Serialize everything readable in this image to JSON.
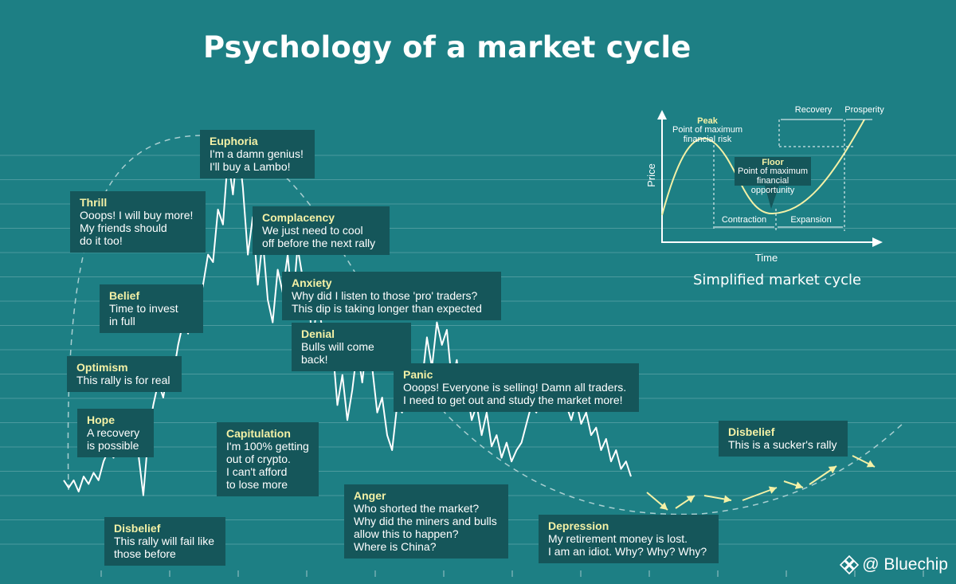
{
  "title": "Psychology of a market cycle",
  "colors": {
    "background": "#1d7f84",
    "box": "#15565a",
    "heading": "#f4f1a6",
    "line": "#ffffff",
    "arrows": "#f4f1a6"
  },
  "stages": [
    {
      "id": "disbelief-1",
      "heading": "Disbelief",
      "text": "This rally will fail like\nthose before"
    },
    {
      "id": "hope",
      "heading": "Hope",
      "text": "A recovery\nis possible"
    },
    {
      "id": "optimism",
      "heading": "Optimism",
      "text": "This rally is for real"
    },
    {
      "id": "belief",
      "heading": "Belief",
      "text": "Time to invest\nin full"
    },
    {
      "id": "thrill",
      "heading": "Thrill",
      "text": "Ooops! I will buy more!\nMy friends should\ndo it too!"
    },
    {
      "id": "euphoria",
      "heading": "Euphoria",
      "text": "I'm a damn genius!\nI'll buy a Lambo!"
    },
    {
      "id": "complacency",
      "heading": "Complacency",
      "text": "We just need to cool\noff before the next rally"
    },
    {
      "id": "anxiety",
      "heading": "Anxiety",
      "text": "Why did I listen to those 'pro' traders?\nThis dip is taking longer than expected"
    },
    {
      "id": "denial",
      "heading": "Denial",
      "text": "Bulls will come back!"
    },
    {
      "id": "capitulation",
      "heading": "Capitulation",
      "text": "I'm 100% getting\nout of crypto.\nI can't afford\nto lose more"
    },
    {
      "id": "panic",
      "heading": "Panic",
      "text": "Ooops! Everyone is selling! Damn all traders.\nI need to get out and study the market more!"
    },
    {
      "id": "anger",
      "heading": "Anger",
      "text": "Who shorted the market?\nWhy did the miners and bulls\nallow this to happen?\nWhere is China?"
    },
    {
      "id": "depression",
      "heading": "Depression",
      "text": "My retirement money is lost.\nI am an idiot. Why? Why? Why?"
    },
    {
      "id": "disbelief-2",
      "heading": "Disbelief",
      "text": "This is a sucker's rally"
    }
  ],
  "inset": {
    "caption": "Simplified market cycle",
    "x_label": "Time",
    "y_label": "Price",
    "peak_title": "Peak",
    "peak_text": "Point of maximum\nfinancial risk",
    "floor_title": "Floor",
    "floor_text": "Point of maximum\nfinancial opportunity",
    "contraction": "Contraction",
    "expansion": "Expansion",
    "recovery": "Recovery",
    "prosperity": "Prosperity"
  },
  "watermark": {
    "text": "@ Bluechip",
    "icon": "diamond-logo-icon"
  },
  "chart_data": {
    "type": "line",
    "title": "Psychology of a market cycle",
    "xlabel": "",
    "ylabel": "",
    "grid": true,
    "y": [
      0.1,
      0.08,
      0.1,
      0.07,
      0.11,
      0.09,
      0.12,
      0.1,
      0.15,
      0.18,
      0.16,
      0.22,
      0.2,
      0.26,
      0.24,
      0.17,
      0.06,
      0.22,
      0.3,
      0.36,
      0.32,
      0.4,
      0.38,
      0.46,
      0.52,
      0.49,
      0.58,
      0.56,
      0.62,
      0.7,
      0.68,
      0.82,
      0.78,
      0.96,
      0.86,
      1.0,
      0.88,
      0.7,
      0.8,
      0.62,
      0.74,
      0.58,
      0.52,
      0.66,
      0.6,
      0.7,
      0.56,
      0.72,
      0.64,
      0.62,
      0.46,
      0.58,
      0.5,
      0.4,
      0.46,
      0.3,
      0.38,
      0.26,
      0.34,
      0.45,
      0.36,
      0.48,
      0.4,
      0.28,
      0.32,
      0.22,
      0.18,
      0.3,
      0.28,
      0.35,
      0.32,
      0.38,
      0.36,
      0.48,
      0.4,
      0.52,
      0.46,
      0.5,
      0.36,
      0.42,
      0.3,
      0.34,
      0.26,
      0.3,
      0.22,
      0.28,
      0.19,
      0.22,
      0.16,
      0.2,
      0.15,
      0.18,
      0.2,
      0.25,
      0.3,
      0.28,
      0.34,
      0.32,
      0.38,
      0.32,
      0.36,
      0.3,
      0.26,
      0.31,
      0.25,
      0.28,
      0.22,
      0.24,
      0.18,
      0.21,
      0.15,
      0.18,
      0.13,
      0.15,
      0.11
    ]
  }
}
